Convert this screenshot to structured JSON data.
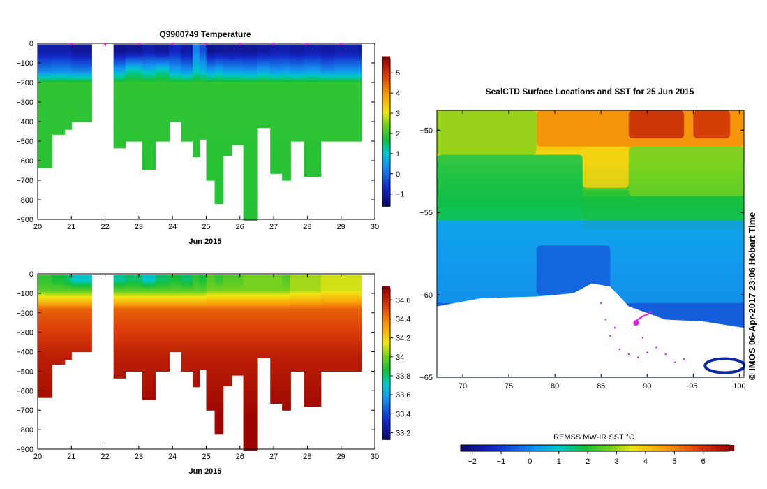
{
  "chart_data": [
    {
      "type": "heatmap",
      "title": "Q9900749  Temperature",
      "xlabel": "Jun 2015",
      "ylabel": "",
      "x_ticks": [
        "20",
        "21",
        "22",
        "23",
        "24",
        "25",
        "26",
        "27",
        "28",
        "29",
        "30"
      ],
      "y_ticks": [
        "0",
        "−100",
        "−200",
        "−300",
        "−400",
        "−500",
        "−600",
        "−700",
        "−800",
        "−900"
      ],
      "xlim": [
        20,
        30
      ],
      "ylim": [
        -900,
        0
      ],
      "colorbar_ticks": [
        "5",
        "4",
        "3",
        "2",
        "1",
        "0",
        "−1"
      ],
      "colorbar_range": [
        -1.6,
        5.7
      ],
      "profile_markers_days": [
        21,
        22,
        23,
        24,
        25,
        26,
        27,
        28,
        29
      ],
      "profiles": [
        {
          "x0": 20.0,
          "x1": 20.42,
          "max_depth": 635,
          "surface": -1.0,
          "mixed": 0.2,
          "deep": 1.9
        },
        {
          "x0": 20.42,
          "x1": 20.8,
          "max_depth": 465,
          "surface": -1.0,
          "mixed": 0.3,
          "deep": 1.9
        },
        {
          "x0": 20.8,
          "x1": 21.0,
          "max_depth": 440,
          "surface": -1.0,
          "mixed": 0.3,
          "deep": 1.9
        },
        {
          "x0": 21.0,
          "x1": 21.6,
          "max_depth": 400,
          "surface": -1.2,
          "mixed": 0.2,
          "deep": 1.9
        },
        {
          "x0": 22.25,
          "x1": 22.6,
          "max_depth": 535,
          "surface": -1.3,
          "mixed": 0.6,
          "deep": 1.9
        },
        {
          "x0": 22.6,
          "x1": 23.1,
          "max_depth": 500,
          "surface": -1.2,
          "mixed": 1.2,
          "deep": 1.9
        },
        {
          "x0": 23.1,
          "x1": 23.5,
          "max_depth": 645,
          "surface": -1.0,
          "mixed": 0.9,
          "deep": 1.9
        },
        {
          "x0": 23.5,
          "x1": 23.9,
          "max_depth": 500,
          "surface": -1.2,
          "mixed": 1.2,
          "deep": 1.9
        },
        {
          "x0": 23.9,
          "x1": 24.25,
          "max_depth": 400,
          "surface": -0.8,
          "mixed": 0.6,
          "deep": 1.9
        },
        {
          "x0": 24.25,
          "x1": 24.6,
          "max_depth": 500,
          "surface": -1.1,
          "mixed": 0.4,
          "deep": 1.9
        },
        {
          "x0": 24.6,
          "x1": 24.8,
          "max_depth": 580,
          "surface": 0.2,
          "mixed": 1.0,
          "deep": 1.9
        },
        {
          "x0": 24.8,
          "x1": 25.0,
          "max_depth": 490,
          "surface": -0.3,
          "mixed": 0.8,
          "deep": 1.9
        },
        {
          "x0": 25.0,
          "x1": 25.25,
          "max_depth": 700,
          "surface": -1.3,
          "mixed": 0.5,
          "deep": 1.9
        },
        {
          "x0": 25.25,
          "x1": 25.5,
          "max_depth": 820,
          "surface": -1.2,
          "mixed": 0.7,
          "deep": 1.9
        },
        {
          "x0": 25.5,
          "x1": 25.75,
          "max_depth": 575,
          "surface": -1.2,
          "mixed": 0.5,
          "deep": 1.9
        },
        {
          "x0": 25.75,
          "x1": 26.1,
          "max_depth": 520,
          "surface": -1.2,
          "mixed": 0.5,
          "deep": 1.9
        },
        {
          "x0": 26.1,
          "x1": 26.5,
          "max_depth": 905,
          "surface": -1.2,
          "mixed": 0.4,
          "deep": 1.9
        },
        {
          "x0": 26.5,
          "x1": 26.9,
          "max_depth": 430,
          "surface": -1.1,
          "mixed": 0.6,
          "deep": 1.9
        },
        {
          "x0": 26.9,
          "x1": 27.25,
          "max_depth": 665,
          "surface": -1.0,
          "mixed": 0.4,
          "deep": 1.9
        },
        {
          "x0": 27.25,
          "x1": 27.5,
          "max_depth": 700,
          "surface": -1.0,
          "mixed": 0.5,
          "deep": 1.9
        },
        {
          "x0": 27.5,
          "x1": 27.9,
          "max_depth": 500,
          "surface": -1.1,
          "mixed": 0.4,
          "deep": 1.9
        },
        {
          "x0": 27.9,
          "x1": 28.4,
          "max_depth": 680,
          "surface": -1.0,
          "mixed": 0.5,
          "deep": 1.9
        },
        {
          "x0": 28.4,
          "x1": 28.8,
          "max_depth": 500,
          "surface": -1.1,
          "mixed": 0.3,
          "deep": 1.9
        },
        {
          "x0": 28.8,
          "x1": 29.6,
          "max_depth": 500,
          "surface": -1.0,
          "mixed": 0.4,
          "deep": 1.9
        }
      ]
    },
    {
      "type": "heatmap",
      "title": "",
      "xlabel": "Jun 2015",
      "ylabel": "",
      "x_ticks": [
        "20",
        "21",
        "22",
        "23",
        "24",
        "25",
        "26",
        "27",
        "28",
        "29",
        "30"
      ],
      "y_ticks": [
        "0",
        "−100",
        "−200",
        "−300",
        "−400",
        "−500",
        "−600",
        "−700",
        "−800",
        "−900"
      ],
      "xlim": [
        20,
        30
      ],
      "ylim": [
        -900,
        0
      ],
      "colorbar_ticks": [
        "34.6",
        "34.4",
        "34.2",
        "34",
        "33.8",
        "33.6",
        "33.4",
        "33.2"
      ],
      "colorbar_range": [
        33.13,
        34.72
      ],
      "profiles": [
        {
          "x0": 20.0,
          "x1": 20.42,
          "max_depth": 635,
          "surface": 33.9,
          "mixed": 33.95
        },
        {
          "x0": 20.42,
          "x1": 20.8,
          "max_depth": 465,
          "surface": 33.85,
          "mixed": 33.95
        },
        {
          "x0": 20.8,
          "x1": 21.0,
          "max_depth": 440,
          "surface": 33.8,
          "mixed": 33.95
        },
        {
          "x0": 21.0,
          "x1": 21.6,
          "max_depth": 400,
          "surface": 33.7,
          "mixed": 33.95
        },
        {
          "x0": 22.25,
          "x1": 22.6,
          "max_depth": 535,
          "surface": 33.75,
          "mixed": 33.95
        },
        {
          "x0": 22.6,
          "x1": 23.1,
          "max_depth": 500,
          "surface": 33.8,
          "mixed": 33.95
        },
        {
          "x0": 23.1,
          "x1": 23.5,
          "max_depth": 645,
          "surface": 33.7,
          "mixed": 33.95
        },
        {
          "x0": 23.5,
          "x1": 23.9,
          "max_depth": 500,
          "surface": 33.8,
          "mixed": 33.95
        },
        {
          "x0": 23.9,
          "x1": 24.25,
          "max_depth": 400,
          "surface": 33.85,
          "mixed": 33.95
        },
        {
          "x0": 24.25,
          "x1": 24.6,
          "max_depth": 500,
          "surface": 33.8,
          "mixed": 33.95
        },
        {
          "x0": 24.6,
          "x1": 24.8,
          "max_depth": 580,
          "surface": 33.9,
          "mixed": 33.95
        },
        {
          "x0": 24.8,
          "x1": 25.0,
          "max_depth": 490,
          "surface": 33.85,
          "mixed": 33.95
        },
        {
          "x0": 25.0,
          "x1": 25.25,
          "max_depth": 700,
          "surface": 33.95,
          "mixed": 34.0
        },
        {
          "x0": 25.25,
          "x1": 25.5,
          "max_depth": 820,
          "surface": 33.9,
          "mixed": 34.0
        },
        {
          "x0": 25.5,
          "x1": 25.75,
          "max_depth": 575,
          "surface": 33.95,
          "mixed": 34.0
        },
        {
          "x0": 25.75,
          "x1": 26.1,
          "max_depth": 520,
          "surface": 33.95,
          "mixed": 34.0
        },
        {
          "x0": 26.1,
          "x1": 26.5,
          "max_depth": 905,
          "surface": 34.0,
          "mixed": 34.0
        },
        {
          "x0": 26.5,
          "x1": 26.9,
          "max_depth": 430,
          "surface": 34.0,
          "mixed": 34.0
        },
        {
          "x0": 26.9,
          "x1": 27.25,
          "max_depth": 665,
          "surface": 34.0,
          "mixed": 34.0
        },
        {
          "x0": 27.25,
          "x1": 27.5,
          "max_depth": 700,
          "surface": 33.95,
          "mixed": 34.0
        },
        {
          "x0": 27.5,
          "x1": 27.9,
          "max_depth": 500,
          "surface": 34.05,
          "mixed": 34.05
        },
        {
          "x0": 27.9,
          "x1": 28.4,
          "max_depth": 680,
          "surface": 34.05,
          "mixed": 34.05
        },
        {
          "x0": 28.4,
          "x1": 28.8,
          "max_depth": 500,
          "surface": 34.1,
          "mixed": 34.1
        },
        {
          "x0": 28.8,
          "x1": 29.6,
          "max_depth": 500,
          "surface": 34.1,
          "mixed": 34.1
        }
      ]
    },
    {
      "type": "heatmap",
      "title": "SealCTD Surface Locations and SST for 25 Jun 2015",
      "x_ticks": [
        "70",
        "75",
        "80",
        "85",
        "90",
        "95",
        "100"
      ],
      "y_ticks": [
        "−50",
        "−55",
        "−60",
        "−65"
      ],
      "xlim": [
        67.2,
        100.5
      ],
      "ylim": [
        -65,
        -48.8
      ],
      "colorbar_label": "REMSS MW-IR SST °C",
      "colorbar_ticks": [
        "−2",
        "−1",
        "0",
        "1",
        "2",
        "3",
        "4",
        "5",
        "6"
      ],
      "colorbar_range": [
        -2.4,
        6.9
      ],
      "regions": [
        {
          "lon": [
            78,
            100.5
          ],
          "lat": [
            -51,
            -48.8
          ],
          "sst": 4.8
        },
        {
          "lon": [
            88,
            94
          ],
          "lat": [
            -50.5,
            -48.8
          ],
          "sst": 6.2
        },
        {
          "lon": [
            95,
            99
          ],
          "lat": [
            -50.5,
            -48.8
          ],
          "sst": 6.0
        },
        {
          "lon": [
            67.2,
            78
          ],
          "lat": [
            -51.5,
            -48.8
          ],
          "sst": 2.8
        },
        {
          "lon": [
            83,
            88
          ],
          "lat": [
            -53.5,
            -51
          ],
          "sst": 3.8
        },
        {
          "lon": [
            88,
            100.5
          ],
          "lat": [
            -54,
            -51
          ],
          "sst": 2.6
        },
        {
          "lon": [
            67.2,
            83
          ],
          "lat": [
            -55.5,
            -51.5
          ],
          "sst": 1.7
        },
        {
          "lon": [
            83,
            100.5
          ],
          "lat": [
            -56,
            -54
          ],
          "sst": 1.8
        },
        {
          "lon": [
            67.2,
            100.5
          ],
          "lat": [
            -60.5,
            -55.5
          ],
          "sst": 0.2
        },
        {
          "lon": [
            78,
            86
          ],
          "lat": [
            -60,
            -57
          ],
          "sst": -0.6
        }
      ],
      "ice_edge": [
        [
          67.2,
          -60.7
        ],
        [
          72,
          -60.2
        ],
        [
          78,
          -60.1
        ],
        [
          82,
          -59.9
        ],
        [
          84,
          -59.3
        ],
        [
          86,
          -59.5
        ],
        [
          88,
          -60.7
        ],
        [
          92,
          -61.5
        ],
        [
          96,
          -61.6
        ],
        [
          100.5,
          -62
        ]
      ],
      "track": [
        [
          88.6,
          -61.7
        ],
        [
          89,
          -61.5
        ],
        [
          89.5,
          -61.3
        ],
        [
          90,
          -61.2
        ],
        [
          90.5,
          -61.0
        ]
      ],
      "seal_location": [
        88.8,
        -61.7
      ],
      "dive_points": [
        [
          85,
          -60.5
        ],
        [
          85.5,
          -61.5
        ],
        [
          86,
          -62.5
        ],
        [
          87,
          -63.3
        ],
        [
          88,
          -63.6
        ],
        [
          89,
          -63.8
        ],
        [
          90,
          -63.5
        ],
        [
          91,
          -63.2
        ],
        [
          92,
          -63.6
        ],
        [
          93,
          -64.1
        ],
        [
          94,
          -63.9
        ],
        [
          89.5,
          -62.6
        ],
        [
          86.5,
          -62.0
        ]
      ],
      "stamp": "© IMOS 06-Apr-2017 23:06 Hobart Time"
    }
  ]
}
